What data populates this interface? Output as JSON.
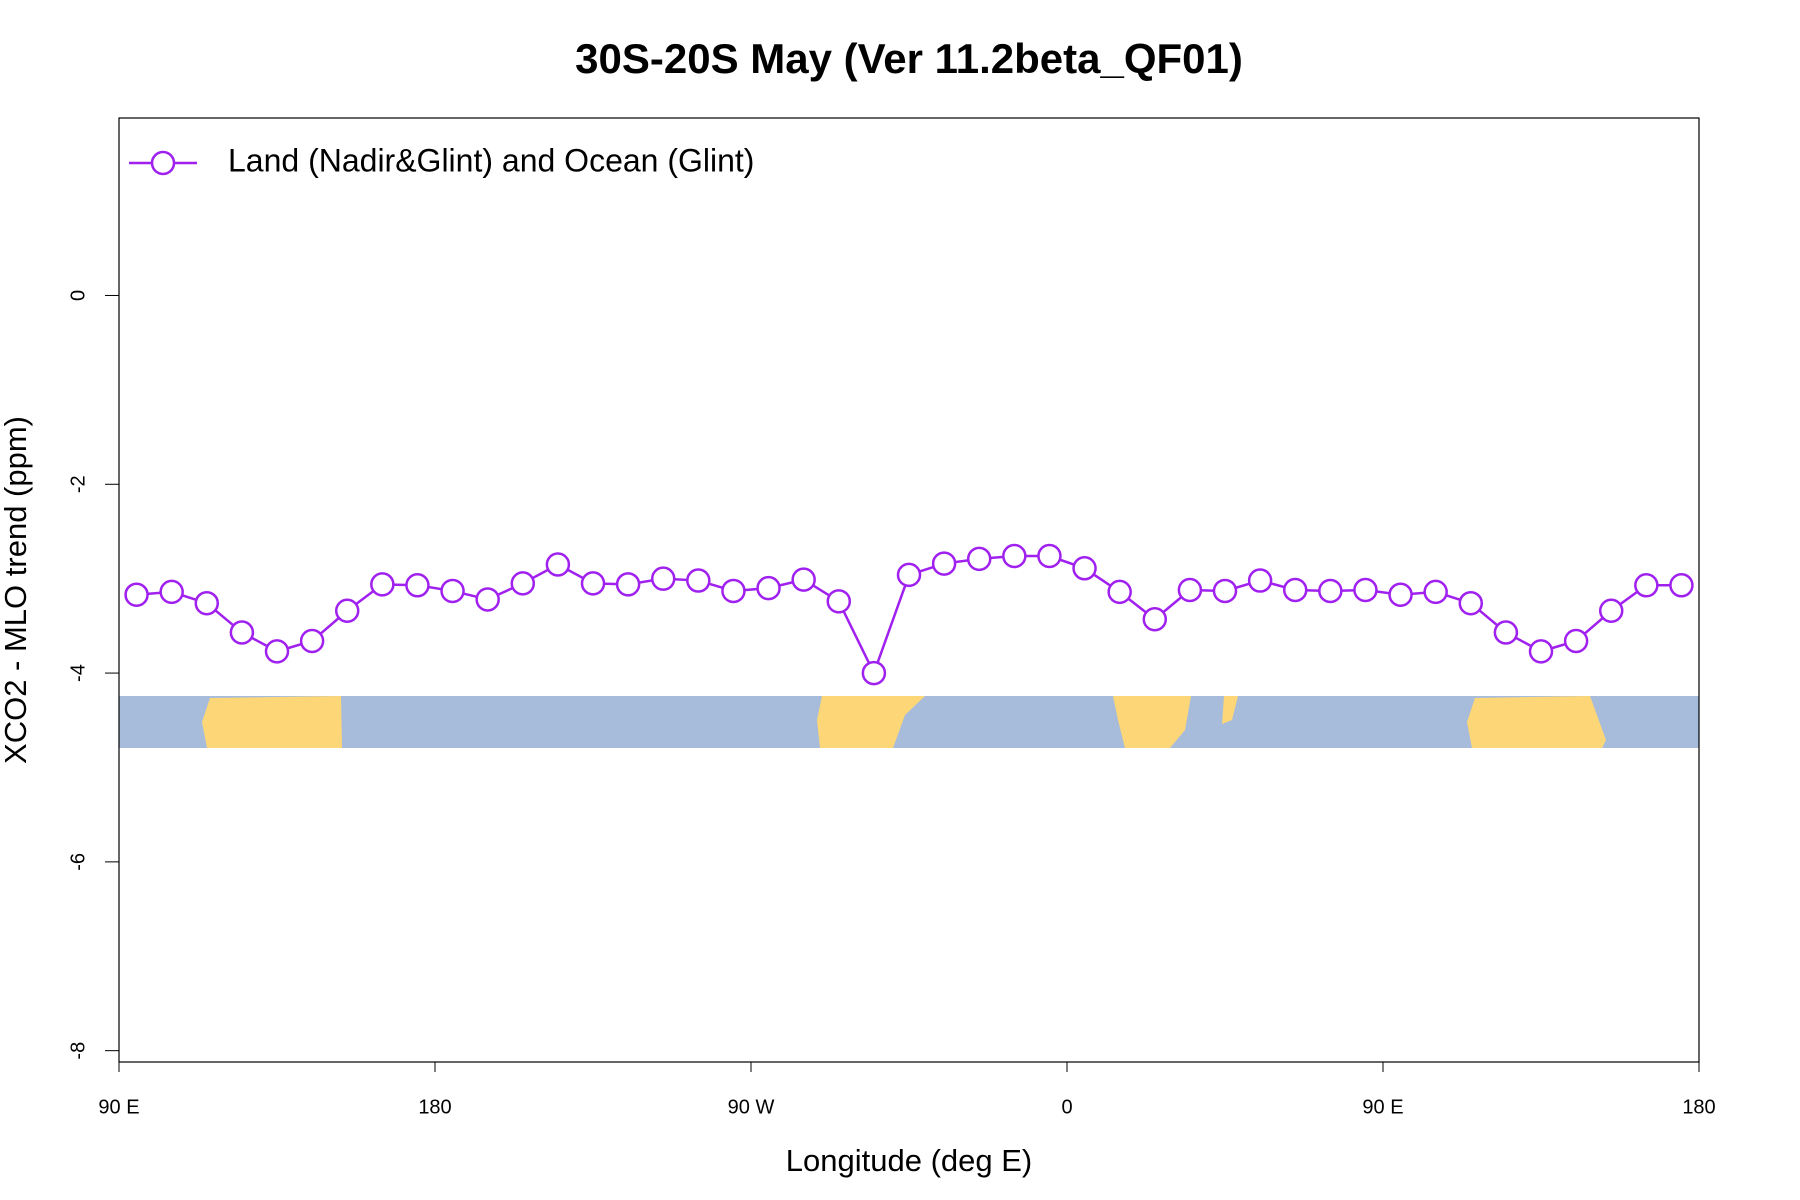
{
  "chart_data": {
    "type": "line",
    "title": "30S-20S May (Ver 11.2beta_QF01)",
    "x_label": "Longitude (deg E)",
    "y_label": "XCO2 - MLO trend (ppm)",
    "xlim": [
      90,
      540
    ],
    "xticks": [
      {
        "value": 90,
        "label": "90 E"
      },
      180,
      {
        "value": 270,
        "label": "90 W"
      },
      {
        "value": 360,
        "label": "0"
      },
      {
        "value": 450,
        "label": "90 E"
      },
      {
        "value": 540,
        "label": "180"
      }
    ],
    "ylim": [
      -8.12,
      1.88
    ],
    "yticks": [
      -8,
      -6,
      -4,
      -2,
      0
    ],
    "legend": "top-left",
    "x": [
      95,
      105,
      115,
      125,
      135,
      145,
      155,
      165,
      175,
      185,
      195,
      205,
      215,
      225,
      235,
      245,
      255,
      265,
      275,
      285,
      295,
      305,
      315,
      325,
      335,
      345,
      355,
      365,
      375,
      385,
      395,
      405,
      415,
      425,
      435,
      445,
      455,
      465,
      475,
      485,
      495,
      505,
      515,
      525,
      535
    ],
    "series": [
      {
        "name": "Land (Nadir&Glint) and Ocean (Glint)",
        "color": "#a020f0",
        "values": [
          -3.17,
          -3.14,
          -3.26,
          -3.57,
          -3.77,
          -3.66,
          -3.34,
          -3.06,
          -3.07,
          -3.13,
          -3.22,
          -3.05,
          -2.85,
          -3.05,
          -3.06,
          -3.0,
          -3.02,
          -3.13,
          -3.1,
          -3.01,
          -3.24,
          -4.0,
          -2.96,
          -2.84,
          -2.79,
          -2.76,
          -2.76,
          -2.89,
          -3.14,
          -3.43,
          -3.12,
          -3.13,
          -3.02,
          -3.12,
          -3.13,
          -3.12,
          -3.17,
          -3.14,
          -3.26,
          -3.57,
          -3.77,
          -3.66,
          -3.34,
          -3.07,
          -3.07
        ]
      }
    ]
  }
}
